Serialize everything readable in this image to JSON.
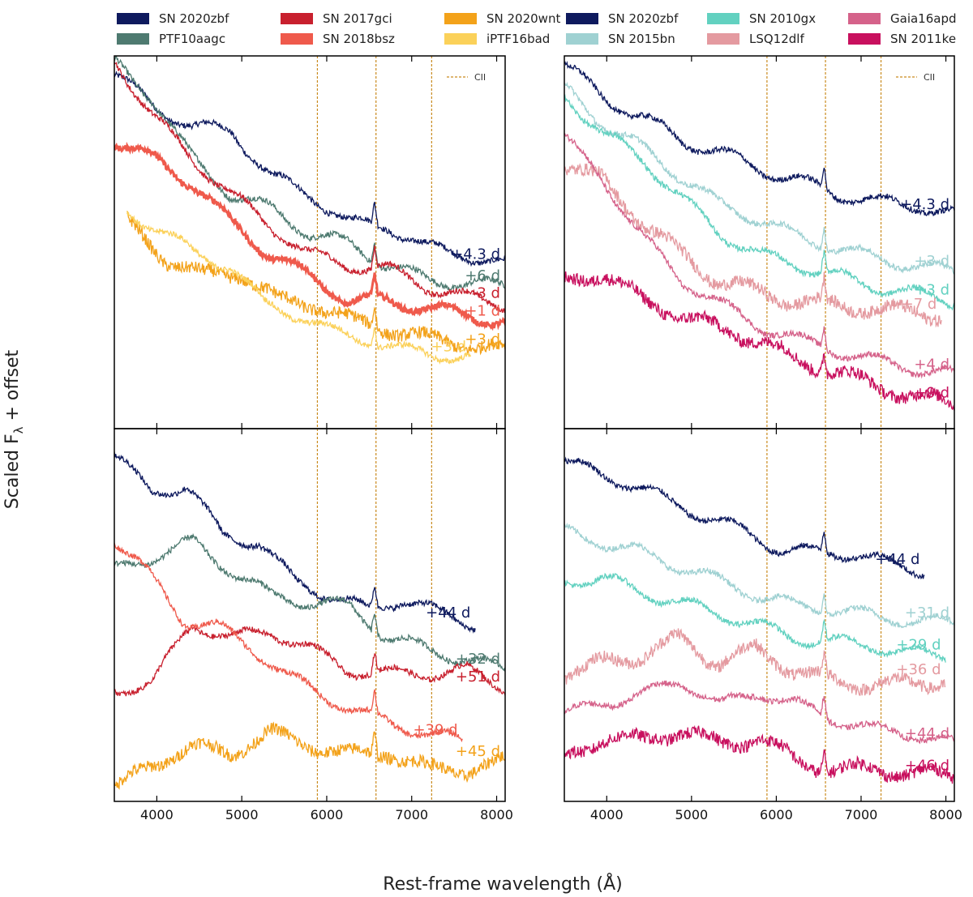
{
  "chart_data": {
    "type": "line",
    "title": "",
    "xlabel": "Rest-frame wavelength (Å)",
    "ylabel_main": "Scaled F",
    "ylabel_sub": "λ",
    "ylabel_rest": " + offset",
    "xlim": [
      3500,
      8100
    ],
    "xticks": [
      4000,
      5000,
      6000,
      7000,
      8000
    ],
    "cii_label": "CII",
    "cii_lines": [
      5890,
      6580,
      7235
    ],
    "legend_left": [
      {
        "name": "SN 2020zbf",
        "color": "#0e1a5e"
      },
      {
        "name": "PTF10aagc",
        "color": "#4e7a70"
      },
      {
        "name": "SN 2017gci",
        "color": "#c8202e"
      },
      {
        "name": "SN 2018bsz",
        "color": "#ef5a4c"
      },
      {
        "name": "SN 2020wnt",
        "color": "#f3a21a"
      },
      {
        "name": "iPTF16bad",
        "color": "#fbd15a"
      }
    ],
    "legend_right": [
      {
        "name": "SN 2020zbf",
        "color": "#0e1a5e"
      },
      {
        "name": "SN 2015bn",
        "color": "#9fd1d2"
      },
      {
        "name": "SN 2010gx",
        "color": "#62d1c0"
      },
      {
        "name": "LSQ12dlf",
        "color": "#e49aa0"
      },
      {
        "name": "Gaia16apd",
        "color": "#d5628a"
      },
      {
        "name": "SN 2011ke",
        "color": "#c8105e"
      }
    ],
    "panels": [
      {
        "id": "top-left",
        "series": [
          {
            "name": "SN 2020zbf",
            "epoch": "+4.3 d",
            "color": "#0e1a5e",
            "start": 3500,
            "end": 8100,
            "values": [
              10.0,
              9.1,
              8.5,
              8.4,
              7.1,
              6.6,
              5.8,
              5.7,
              5.1,
              4.9,
              4.6
            ]
          },
          {
            "name": "PTF10aagc",
            "epoch": "+6 d",
            "color": "#4e7a70",
            "start": 3500,
            "end": 8100,
            "values": [
              10.3,
              9.3,
              7.6,
              6.6,
              6.2,
              5.5,
              5.2,
              4.6,
              4.2,
              4.1,
              4.0
            ]
          },
          {
            "name": "SN 2017gci",
            "epoch": "-3 d",
            "color": "#c8202e",
            "start": 3500,
            "end": 8100,
            "values": [
              10.4,
              8.8,
              7.6,
              6.6,
              5.7,
              4.9,
              4.6,
              4.5,
              4.0,
              3.7,
              3.5
            ]
          },
          {
            "name": "SN 2018bsz",
            "epoch": "+1 d",
            "color": "#ef5a4c",
            "start": 3500,
            "end": 8100,
            "values": [
              8.1,
              7.6,
              6.9,
              5.8,
              4.9,
              4.3,
              3.6,
              3.6,
              3.4,
              3.2,
              3.0
            ]
          },
          {
            "name": "SN 2020wnt",
            "epoch": "+3 d",
            "color": "#f3a21a",
            "start": 3650,
            "end": 8100,
            "values": [
              5.8,
              4.8,
              4.3,
              4.4,
              3.6,
              3.5,
              3.0,
              2.8,
              2.5,
              2.4,
              2.2
            ]
          },
          {
            "name": "iPTF16bad",
            "epoch": "+3 d",
            "color": "#fbd15a",
            "start": 3650,
            "end": 7700,
            "values": [
              6.1,
              5.6,
              4.9,
              4.6,
              3.5,
              3.2,
              2.7,
              2.5,
              2.2,
              2.1,
              2.0
            ]
          }
        ]
      },
      {
        "id": "top-right",
        "series": [
          {
            "name": "SN 2020zbf",
            "epoch": "+4.3 d",
            "color": "#0e1a5e",
            "start": 3500,
            "end": 8100,
            "values": [
              10.3,
              9.3,
              8.8,
              8.1,
              7.8,
              7.3,
              7.0,
              6.6,
              6.4,
              6.3,
              6.0
            ]
          },
          {
            "name": "SN 2015bn",
            "epoch": "+3 d",
            "color": "#9fd1d2",
            "start": 3500,
            "end": 8100,
            "values": [
              9.6,
              8.6,
              7.9,
              7.1,
              6.3,
              5.9,
              5.4,
              5.1,
              4.8,
              4.6,
              4.4
            ]
          },
          {
            "name": "SN 2010gx",
            "epoch": "+3 d",
            "color": "#62d1c0",
            "start": 3500,
            "end": 8100,
            "values": [
              9.4,
              8.3,
              7.6,
              6.5,
              5.5,
              4.9,
              4.6,
              4.3,
              4.0,
              3.8,
              3.6
            ]
          },
          {
            "name": "LSQ12dlf",
            "epoch": "+7 d",
            "color": "#e49aa0",
            "start": 3500,
            "end": 7950,
            "values": [
              7.5,
              7.0,
              5.9,
              5.0,
              4.2,
              3.9,
              3.6,
              3.5,
              3.4,
              3.3,
              3.2
            ]
          },
          {
            "name": "Gaia16apd",
            "epoch": "+4 d",
            "color": "#d5628a",
            "start": 3500,
            "end": 8100,
            "values": [
              8.2,
              7.0,
              5.4,
              4.2,
              3.5,
              2.9,
              2.5,
              2.2,
              1.9,
              1.7,
              1.5
            ]
          },
          {
            "name": "SN 2011ke",
            "epoch": "+9 d",
            "color": "#c8105e",
            "start": 3500,
            "end": 8100,
            "values": [
              4.1,
              4.4,
              3.6,
              3.2,
              2.8,
              2.5,
              1.9,
              1.6,
              1.2,
              0.9,
              0.7
            ]
          }
        ]
      },
      {
        "id": "bottom-left",
        "series": [
          {
            "name": "SN 2020zbf",
            "epoch": "+44 d",
            "color": "#0e1a5e",
            "start": 3500,
            "end": 7750,
            "values": [
              9.8,
              8.7,
              8.9,
              7.5,
              7.3,
              6.2,
              5.8,
              5.4,
              5.7,
              5.3,
              5.0
            ]
          },
          {
            "name": "PTF10aagc",
            "epoch": "+32 d",
            "color": "#4e7a70",
            "start": 3500,
            "end": 8100,
            "values": [
              6.5,
              6.9,
              7.3,
              6.5,
              5.8,
              5.6,
              5.5,
              4.6,
              4.3,
              4.0,
              3.7
            ]
          },
          {
            "name": "SN 2017gci",
            "epoch": "+51 d",
            "color": "#c8202e",
            "start": 3500,
            "end": 8100,
            "values": [
              3.1,
              3.4,
              5.0,
              4.6,
              4.8,
              4.3,
              3.7,
              3.6,
              3.6,
              3.7,
              3.2
            ]
          },
          {
            "name": "SN 2018bsz",
            "epoch": "+39 d",
            "color": "#ef5a4c",
            "start": 3500,
            "end": 7600,
            "values": [
              7.4,
              6.4,
              5.1,
              4.9,
              4.3,
              3.5,
              3.0,
              2.5,
              2.2,
              1.9,
              1.7
            ]
          },
          {
            "name": "SN 2020wnt",
            "epoch": "+45 d",
            "color": "#f3a21a",
            "start": 3500,
            "end": 8100,
            "values": [
              0.3,
              1.1,
              1.5,
              1.4,
              1.9,
              1.6,
              1.3,
              1.4,
              0.9,
              0.9,
              1.1
            ]
          }
        ]
      },
      {
        "id": "bottom-right",
        "series": [
          {
            "name": "SN 2020zbf",
            "epoch": "+44 d",
            "color": "#0e1a5e",
            "start": 3500,
            "end": 7750,
            "values": [
              9.6,
              9.2,
              8.9,
              8.4,
              8.0,
              7.6,
              7.1,
              7.0,
              7.0,
              6.7,
              6.5
            ]
          },
          {
            "name": "SN 2015bn",
            "epoch": "+31 d",
            "color": "#9fd1d2",
            "start": 3500,
            "end": 8100,
            "values": [
              7.6,
              7.3,
              7.0,
              6.6,
              6.2,
              5.8,
              5.5,
              5.4,
              5.2,
              5.1,
              5.0
            ]
          },
          {
            "name": "SN 2010gx",
            "epoch": "+29 d",
            "color": "#62d1c0",
            "start": 3500,
            "end": 8000,
            "values": [
              6.2,
              6.3,
              5.9,
              5.6,
              5.3,
              5.0,
              4.6,
              4.5,
              4.4,
              4.2,
              4.1
            ]
          },
          {
            "name": "LSQ12dlf",
            "epoch": "+36 d",
            "color": "#e49aa0",
            "start": 3500,
            "end": 8000,
            "values": [
              3.6,
              3.9,
              4.1,
              4.6,
              3.9,
              4.3,
              3.7,
              3.4,
              3.3,
              3.3,
              3.4
            ]
          },
          {
            "name": "Gaia16apd",
            "epoch": "+44 d",
            "color": "#d5628a",
            "start": 3500,
            "end": 8100,
            "values": [
              2.4,
              2.8,
              3.0,
              3.4,
              2.7,
              3.1,
              2.7,
              2.3,
              2.0,
              1.9,
              1.6
            ]
          },
          {
            "name": "SN 2011ke",
            "epoch": "+46 d",
            "color": "#c8105e",
            "start": 3500,
            "end": 8100,
            "values": [
              1.2,
              1.8,
              1.7,
              2.0,
              1.6,
              1.8,
              1.1,
              0.9,
              0.9,
              0.8,
              0.7
            ]
          }
        ]
      }
    ]
  }
}
